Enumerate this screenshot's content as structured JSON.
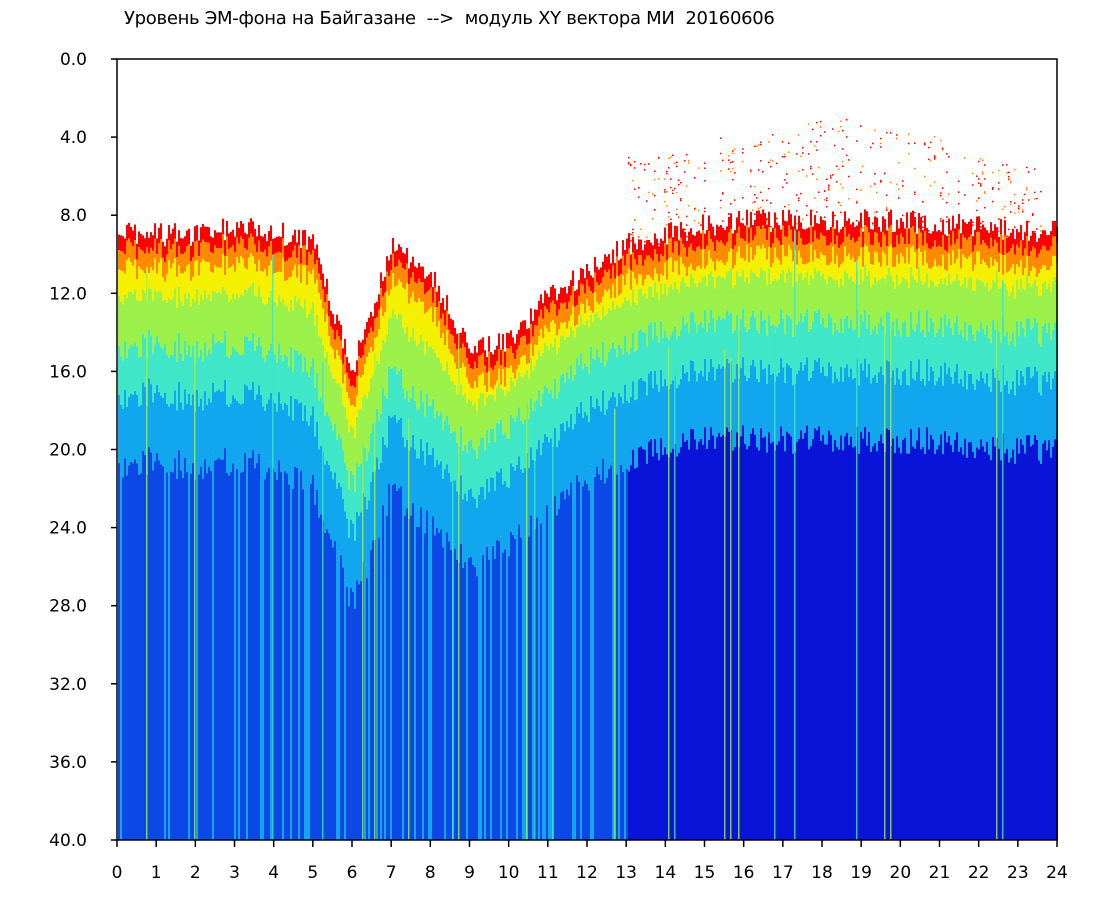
{
  "chart_data": {
    "type": "heatmap",
    "title": "Уровень ЭМ-фона на Байгазане  -->  модуль XY вектора МИ  20160606",
    "xlabel": "",
    "ylabel": "",
    "xlim": [
      0,
      24
    ],
    "ylim": [
      0.0,
      40.0
    ],
    "y_inverted": true,
    "grid": false,
    "x_ticks": [
      "0",
      "1",
      "2",
      "3",
      "4",
      "5",
      "6",
      "7",
      "8",
      "9",
      "10",
      "11",
      "12",
      "13",
      "14",
      "15",
      "16",
      "17",
      "18",
      "19",
      "20",
      "21",
      "22",
      "23",
      "24"
    ],
    "y_ticks": [
      "0.0",
      "4.0",
      "8.0",
      "12.0",
      "16.0",
      "20.0",
      "24.0",
      "28.0",
      "32.0",
      "36.0",
      "40.0"
    ],
    "colormap": [
      "#0a14d8",
      "#0b48e6",
      "#12a6ee",
      "#3fe6c8",
      "#9cf04a",
      "#f4f000",
      "#ff8a00",
      "#ff0000"
    ],
    "hours": [
      0,
      1,
      2,
      3,
      4,
      5,
      6,
      7,
      8,
      9,
      10,
      11,
      12,
      13,
      14,
      15,
      16,
      17,
      18,
      19,
      20,
      21,
      22,
      23
    ],
    "red_edge": [
      8.8,
      9.0,
      9.0,
      8.6,
      8.8,
      9.5,
      16.0,
      9.5,
      11.0,
      15.0,
      14.5,
      12.0,
      11.0,
      9.5,
      9.0,
      8.5,
      8.3,
      8.3,
      8.3,
      8.3,
      8.3,
      8.5,
      8.5,
      8.8
    ],
    "cyan_edge": [
      15.0,
      14.5,
      15.0,
      14.5,
      15.0,
      16.0,
      22.0,
      16.0,
      18.0,
      20.0,
      19.0,
      17.0,
      15.5,
      14.5,
      14.0,
      13.5,
      13.5,
      13.5,
      13.5,
      13.5,
      13.5,
      13.5,
      13.8,
      14.0
    ],
    "sparse_peak": [
      null,
      null,
      null,
      null,
      null,
      null,
      null,
      null,
      null,
      null,
      null,
      null,
      null,
      null,
      5.0,
      4.0,
      4.0,
      3.5,
      3.0,
      3.0,
      3.5,
      4.0,
      5.0,
      5.5
    ]
  }
}
